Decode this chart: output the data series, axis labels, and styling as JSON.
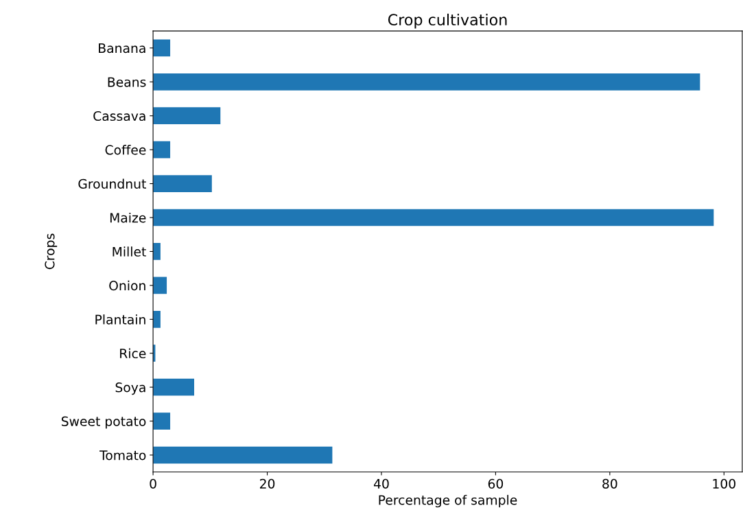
{
  "chart_data": {
    "type": "bar",
    "orientation": "horizontal",
    "title": "Crop cultivation",
    "xlabel": "Percentage of sample",
    "ylabel": "Crops",
    "categories": [
      "Banana",
      "Beans",
      "Cassava",
      "Coffee",
      "Groundnut",
      "Maize",
      "Millet",
      "Onion",
      "Plantain",
      "Rice",
      "Soya",
      "Sweet potato",
      "Tomato"
    ],
    "values": [
      3.0,
      95.8,
      11.8,
      3.0,
      10.3,
      98.2,
      1.3,
      2.4,
      1.3,
      0.4,
      7.2,
      3.0,
      31.4
    ],
    "color": "#1f77b4",
    "xlim": [
      0,
      103.2
    ],
    "xticks": [
      0,
      20,
      40,
      60,
      80,
      100
    ],
    "grid": false,
    "legend": false
  }
}
